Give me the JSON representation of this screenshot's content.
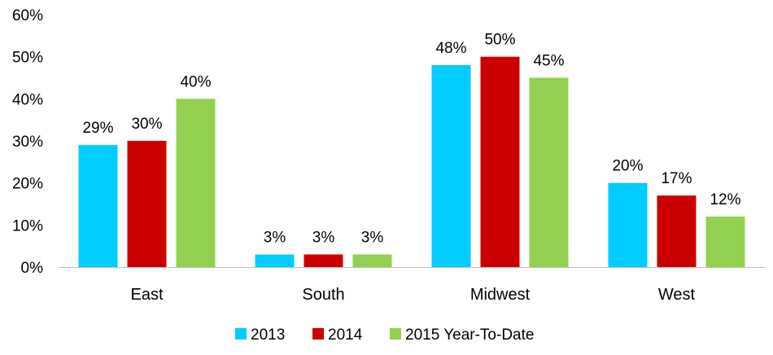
{
  "chart_data": {
    "type": "bar",
    "title": "",
    "xlabel": "",
    "ylabel": "",
    "categories": [
      "East",
      "South",
      "Midwest",
      "West"
    ],
    "series": [
      {
        "name": "2013",
        "values": [
          29,
          3,
          48,
          20
        ],
        "labels": [
          "29%",
          "3%",
          "48%",
          "20%"
        ],
        "color": "#00CCFF"
      },
      {
        "name": "2014",
        "values": [
          30,
          3,
          50,
          17
        ],
        "labels": [
          "30%",
          "3%",
          "50%",
          "17%"
        ],
        "color": "#CC0000"
      },
      {
        "name": "2015 Year-To-Date",
        "values": [
          40,
          3,
          45,
          12
        ],
        "labels": [
          "40%",
          "3%",
          "45%",
          "12%"
        ],
        "color": "#92D050"
      }
    ],
    "ylim": [
      0,
      60
    ],
    "yticks": [
      0,
      10,
      20,
      30,
      40,
      50,
      60
    ],
    "ytick_labels": [
      "0%",
      "10%",
      "20%",
      "30%",
      "40%",
      "50%",
      "60%"
    ],
    "grid": false,
    "legend_position": "bottom"
  }
}
